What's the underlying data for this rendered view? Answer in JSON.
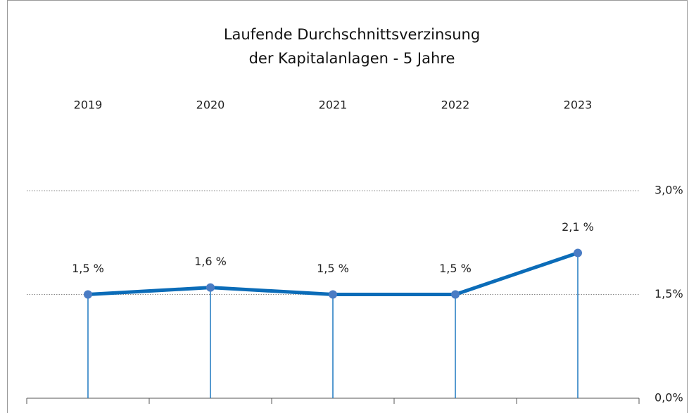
{
  "chart_data": {
    "type": "line",
    "title": [
      "Laufende Durchschnittsverzinsung",
      "der Kapitalanlagen - 5 Jahre"
    ],
    "categories": [
      "2019",
      "2020",
      "2021",
      "2022",
      "2023"
    ],
    "series": [
      {
        "name": "Laufende Durchschnittsverzinsung",
        "color": "#0b6cb8",
        "values": [
          1.5,
          1.6,
          1.5,
          1.5,
          2.1
        ],
        "value_labels": [
          "1,5 %",
          "1,6 %",
          "1,5 %",
          "1,5 %",
          "2,1 %"
        ]
      }
    ],
    "ylim": [
      0,
      3
    ],
    "yticks": [
      {
        "value": 0,
        "label": "0,0%"
      },
      {
        "value": 1.5,
        "label": "1,5%"
      },
      {
        "value": 3,
        "label": "3,0%"
      }
    ],
    "grid": true
  }
}
